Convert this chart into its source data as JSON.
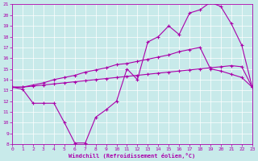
{
  "xlabel": "Windchill (Refroidissement éolien,°C)",
  "background_color": "#c8eaea",
  "line_color": "#aa00aa",
  "grid_color": "#ffffff",
  "xmin": 0,
  "xmax": 23,
  "ymin": 8,
  "ymax": 21,
  "line1_x": [
    0,
    1,
    2,
    3,
    4,
    5,
    6,
    7,
    8,
    9,
    10,
    11,
    12,
    13,
    14,
    15,
    16,
    17,
    18,
    19,
    20,
    21,
    22,
    23
  ],
  "line1_y": [
    13.3,
    13.1,
    11.8,
    11.8,
    11.8,
    10.0,
    8.1,
    8.1,
    10.5,
    11.2,
    12.0,
    15.0,
    14.0,
    17.5,
    18.0,
    19.0,
    18.2,
    20.2,
    20.5,
    21.2,
    20.8,
    19.2,
    17.2,
    13.3
  ],
  "line2_x": [
    0,
    1,
    2,
    3,
    4,
    5,
    6,
    7,
    8,
    9,
    10,
    11,
    12,
    13,
    14,
    15,
    16,
    17,
    18,
    19,
    20,
    21,
    22,
    23
  ],
  "line2_y": [
    13.3,
    13.3,
    13.5,
    13.7,
    14.0,
    14.2,
    14.4,
    14.7,
    14.9,
    15.1,
    15.4,
    15.5,
    15.7,
    15.9,
    16.1,
    16.3,
    16.6,
    16.8,
    17.0,
    15.0,
    14.8,
    14.5,
    14.2,
    13.3
  ],
  "line3_x": [
    0,
    1,
    2,
    3,
    4,
    5,
    6,
    7,
    8,
    9,
    10,
    11,
    12,
    13,
    14,
    15,
    16,
    17,
    18,
    19,
    20,
    21,
    22,
    23
  ],
  "line3_y": [
    13.3,
    13.3,
    13.4,
    13.5,
    13.6,
    13.7,
    13.8,
    13.9,
    14.0,
    14.1,
    14.2,
    14.3,
    14.4,
    14.5,
    14.6,
    14.7,
    14.8,
    14.9,
    15.0,
    15.1,
    15.2,
    15.3,
    15.2,
    13.3
  ],
  "yticks": [
    8,
    9,
    10,
    11,
    12,
    13,
    14,
    15,
    16,
    17,
    18,
    19,
    20,
    21
  ],
  "xticks": [
    0,
    1,
    2,
    3,
    4,
    5,
    6,
    7,
    8,
    9,
    10,
    11,
    12,
    13,
    14,
    15,
    16,
    17,
    18,
    19,
    20,
    21,
    22,
    23
  ],
  "tick_fontsize": 4.5,
  "xlabel_fontsize": 5.0,
  "marker_size": 2.5,
  "line_width": 0.8
}
